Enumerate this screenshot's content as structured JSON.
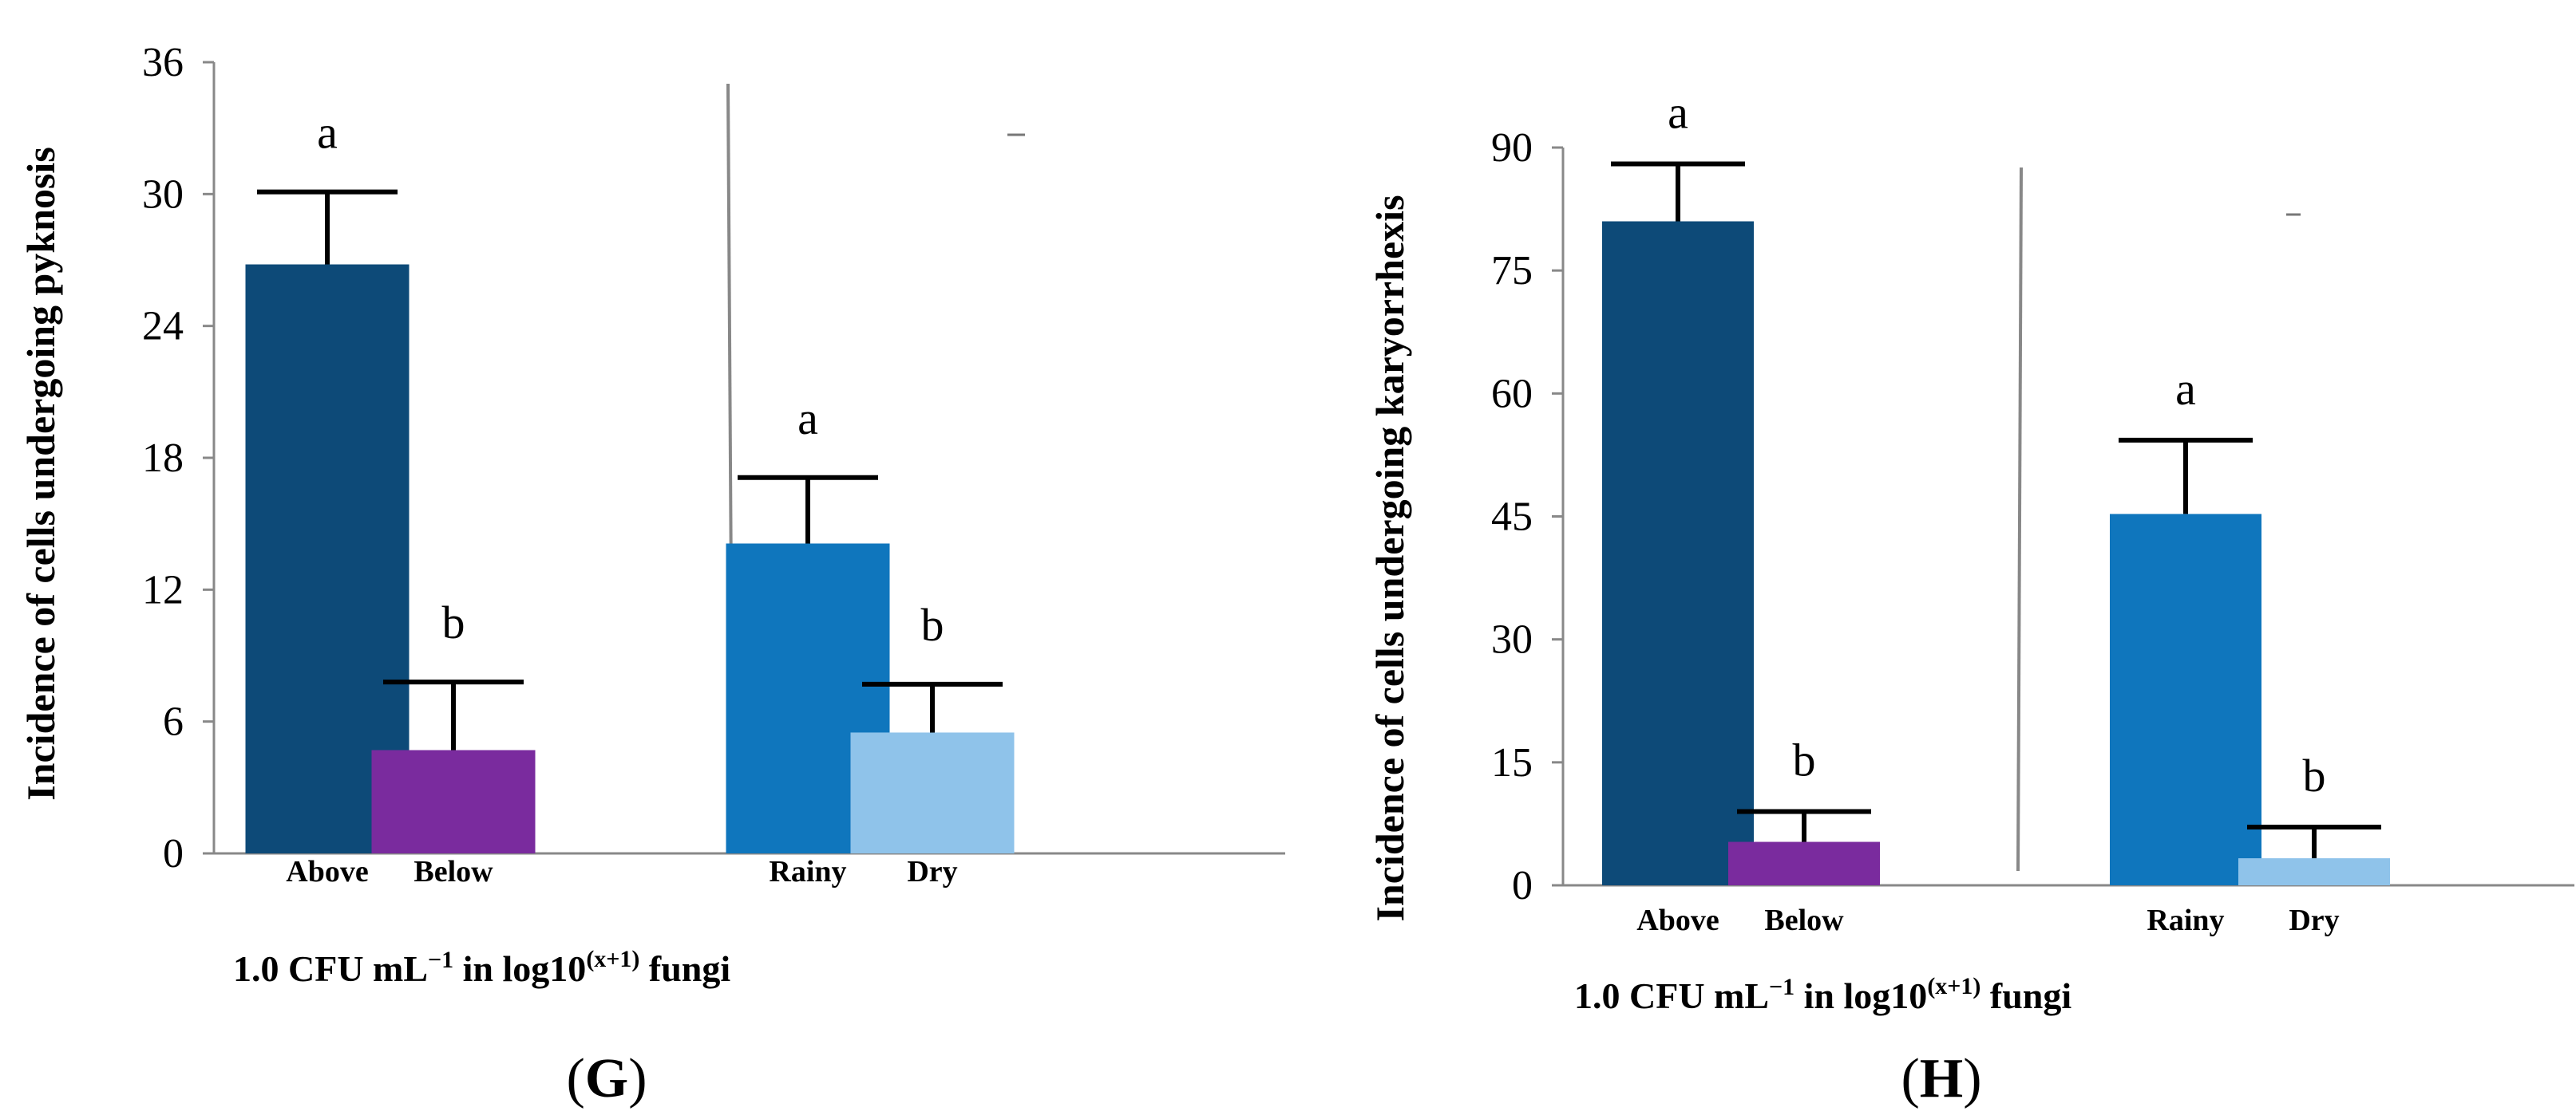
{
  "chart_data": [
    {
      "panel": "G",
      "panel_label": "(G)",
      "type": "bar",
      "ylabel": "Incidence of cells undergoing pyknosis",
      "xlabel": {
        "prefix": "1.0 CFU mL",
        "exponent": "−1",
        "middle": " in log10",
        "superscript": "(x+1)",
        "suffix": " fungi"
      },
      "ylim": [
        0,
        36
      ],
      "yticks": [
        0,
        6,
        12,
        18,
        24,
        30,
        36
      ],
      "categories": [
        "Above",
        "Below",
        "Rainy",
        "Dry"
      ],
      "values": [
        26.8,
        4.7,
        14.1,
        5.5
      ],
      "errors": [
        3.3,
        3.1,
        3.0,
        2.2
      ],
      "letters": [
        "a",
        "b",
        "a",
        "b"
      ],
      "colors": [
        "#0d4a78",
        "#7a2b9e",
        "#0f76bd",
        "#8fc3ea"
      ],
      "groups": [
        [
          "Above",
          "Below"
        ],
        [
          "Rainy",
          "Dry"
        ]
      ],
      "grid": false
    },
    {
      "panel": "H",
      "panel_label": "(H)",
      "type": "bar",
      "ylabel": "Incidence of cells undergoing karyorrhexis",
      "xlabel": {
        "prefix": "1.0 CFU mL",
        "exponent": "−1",
        "middle": " in log10",
        "superscript": "(x+1)",
        "suffix": " fungi"
      },
      "ylim": [
        0,
        90
      ],
      "yticks": [
        0,
        15,
        30,
        45,
        60,
        75,
        90
      ],
      "categories": [
        "Above",
        "Below",
        "Rainy",
        "Dry"
      ],
      "values": [
        81.0,
        5.3,
        45.3,
        3.3
      ],
      "errors": [
        7.0,
        3.7,
        9.0,
        3.8
      ],
      "letters": [
        "a",
        "b",
        "a",
        "b"
      ],
      "colors": [
        "#0d4a78",
        "#7a2b9e",
        "#0f76bd",
        "#8fc3ea"
      ],
      "groups": [
        [
          "Above",
          "Below"
        ],
        [
          "Rainy",
          "Dry"
        ]
      ],
      "grid": false
    }
  ]
}
